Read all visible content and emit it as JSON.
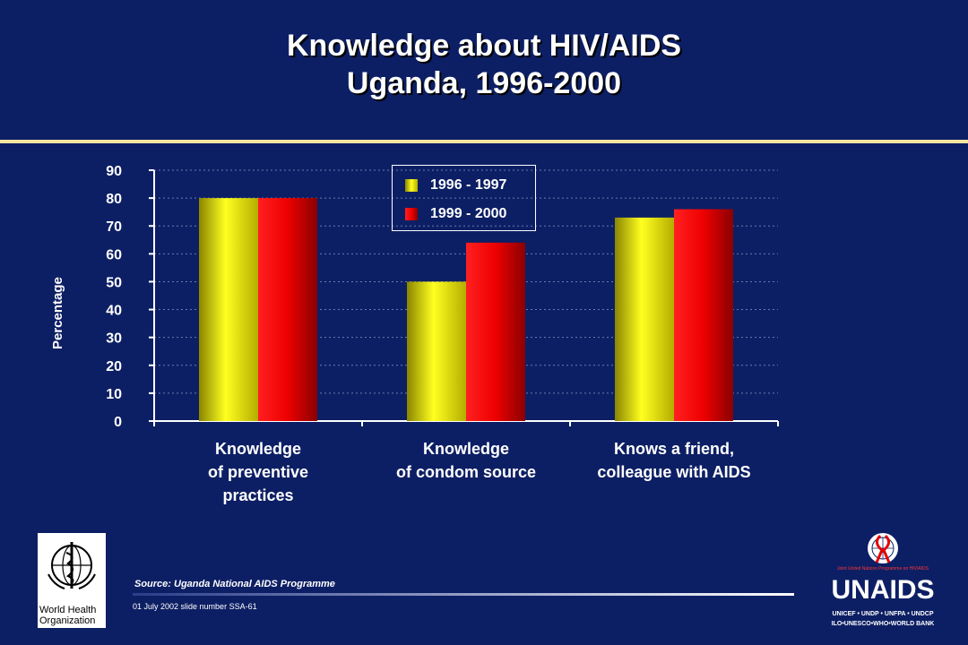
{
  "title": {
    "line1": "Knowledge about HIV/AIDS",
    "line2": "Uganda, 1996-2000"
  },
  "colors": {
    "background": "#0d1f64",
    "rule": "#f2e6a0",
    "series1": "#f2ea00",
    "series2": "#e30000"
  },
  "chart_data": {
    "type": "bar",
    "categories": [
      "Knowledge\nof preventive\npractices",
      "Knowledge\nof condom source",
      "Knows a friend,\ncolleague with AIDS"
    ],
    "series": [
      {
        "name": "1996 - 1997",
        "values": [
          80,
          50,
          73
        ]
      },
      {
        "name": "1999 - 2000",
        "values": [
          80,
          64,
          76
        ]
      }
    ],
    "ylabel": "Percentage",
    "ylim": [
      0,
      90
    ],
    "yticks": [
      0,
      10,
      20,
      30,
      40,
      50,
      60,
      70,
      80,
      90
    ],
    "grid": true,
    "legend_position": "top-center"
  },
  "footer": {
    "source": "Source:  Uganda National AIDS Programme",
    "slide_number": "01 July 2002 slide number SSA-61"
  },
  "logos": {
    "who_line1": "World Health",
    "who_line2": "Organization",
    "unaids_word": "UNAIDS",
    "unaids_tagline": "Joint United Nations Programme on HIV/AIDS",
    "unaids_sub1": "UNICEF • UNDP • UNFPA • UNDCP",
    "unaids_sub2": "ILO•UNESCO•WHO•WORLD BANK"
  }
}
